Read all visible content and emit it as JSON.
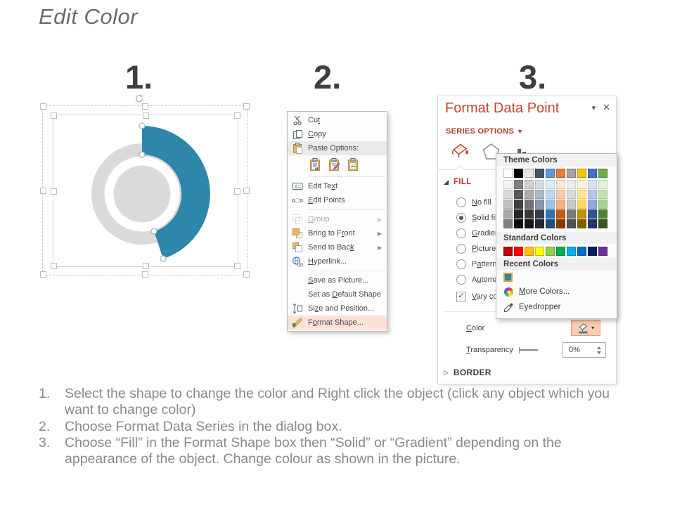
{
  "title": "Edit Color",
  "step_numbers": [
    "1.",
    "2.",
    "3."
  ],
  "shape": {
    "arc_color": "#2E86AB",
    "donut_color": "#DADADA",
    "ring_color": "#FFFFFF"
  },
  "context_menu": {
    "items": [
      {
        "type": "item",
        "icon": "cut-icon",
        "label": "Cu<u>t</u>"
      },
      {
        "type": "item",
        "icon": "copy-icon",
        "label": "<u>C</u>opy"
      },
      {
        "type": "item",
        "icon": "paste-icon",
        "label": "Paste Options:",
        "highlight": true
      },
      {
        "type": "paste_row",
        "icons": [
          "paste-keep-formatting-icon",
          "paste-merge-formatting-icon",
          "paste-picture-icon"
        ]
      },
      {
        "type": "sep"
      },
      {
        "type": "item",
        "icon": "edit-text-icon",
        "label": "Edit Te<u>x</u>t"
      },
      {
        "type": "item",
        "icon": "edit-points-icon",
        "label": "<u>E</u>dit Points"
      },
      {
        "type": "sep"
      },
      {
        "type": "item",
        "icon": "group-icon",
        "label": "<u>G</u>roup",
        "disabled": true,
        "submenu": true
      },
      {
        "type": "item",
        "icon": "bring-to-front-icon",
        "label": "Bring to F<u>r</u>ont",
        "submenu": true
      },
      {
        "type": "item",
        "icon": "send-to-back-icon",
        "label": "Send to Bac<u>k</u>",
        "submenu": true
      },
      {
        "type": "item",
        "icon": "hyperlink-icon",
        "label": "<u>H</u>yperlink..."
      },
      {
        "type": "sep"
      },
      {
        "type": "item",
        "icon": null,
        "label": "<u>S</u>ave as Picture..."
      },
      {
        "type": "item",
        "icon": null,
        "label": "Set as <u>D</u>efault Shape"
      },
      {
        "type": "item",
        "icon": "size-position-icon",
        "label": "Si<u>z</u>e and Position..."
      },
      {
        "type": "item",
        "icon": "format-shape-icon",
        "label": "F<u>o</u>rmat Shape...",
        "highlight2": true
      }
    ]
  },
  "panel": {
    "title": "Format Data Point",
    "collapse_icon": "▾",
    "close_icon": "✕",
    "series_options": "SERIES OPTIONS",
    "series_caret": "▼",
    "tabs": [
      "fill-and-line",
      "effects",
      "series-options"
    ],
    "fill_header": "FILL",
    "fill_options": [
      {
        "label": "<u>N</u>o fill",
        "selected": false
      },
      {
        "label": "<u>S</u>olid fill",
        "selected": true
      },
      {
        "label": "<u>G</u>radient fill",
        "selected": false
      },
      {
        "label": "<u>P</u>icture or texture fill",
        "selected": false
      },
      {
        "label": "P<u>a</u>ttern fill",
        "selected": false
      },
      {
        "label": "A<u>u</u>tomatic",
        "selected": false
      }
    ],
    "vary": {
      "label": "<u>V</u>ary colors by point",
      "checked": true,
      "check_glyph": "✓"
    },
    "color_label": "<u>C</u>olor",
    "color_dropdown_caret": "▾",
    "transparency_label": "<u>T</u>ransparency",
    "transparency_value": "0%",
    "border_header": "BORDER",
    "border_caret": "▷"
  },
  "picker": {
    "theme_header": "Theme Colors",
    "standard_header": "Standard Colors",
    "recent_header": "Recent Colors",
    "more_colors_label": "<u>M</u>ore Colors...",
    "eyedropper_label": "Eyedropper",
    "theme_colors": [
      "#FFFFFF",
      "#000000",
      "#E7E6E6",
      "#44546A",
      "#5B9BD5",
      "#ED7D31",
      "#A5A5A5",
      "#FFC000",
      "#4472C4",
      "#70AD47"
    ],
    "theme_variants": [
      [
        "#F2F2F2",
        "#D9D9D9",
        "#BFBFBF",
        "#A6A6A6",
        "#808080"
      ],
      [
        "#808080",
        "#595959",
        "#404040",
        "#262626",
        "#0D0D0D"
      ],
      [
        "#D0CECE",
        "#AEABAB",
        "#757070",
        "#3A3838",
        "#161616"
      ],
      [
        "#D6DCE4",
        "#ACB9CA",
        "#8496B0",
        "#333F4F",
        "#222A35"
      ],
      [
        "#DEEBF6",
        "#BDD7EE",
        "#9DC3E6",
        "#2E74B5",
        "#1F4E79"
      ],
      [
        "#FBE5D5",
        "#F7CBAC",
        "#F4B183",
        "#C55A11",
        "#833C00"
      ],
      [
        "#EDEDED",
        "#DBDBDB",
        "#C9C9C9",
        "#7B7B7B",
        "#525252"
      ],
      [
        "#FFF2CC",
        "#FFE599",
        "#FFD965",
        "#BF9000",
        "#7F6000"
      ],
      [
        "#DAE3F3",
        "#B4C7E7",
        "#8FAADC",
        "#2F5597",
        "#1F3864"
      ],
      [
        "#E2EFD9",
        "#C5E0B3",
        "#A8D08D",
        "#538135",
        "#375623"
      ]
    ],
    "standard_colors": [
      "#C00000",
      "#FF0000",
      "#FFC000",
      "#FFFF00",
      "#92D050",
      "#00B050",
      "#00B0F0",
      "#0070C0",
      "#002060",
      "#7030A0"
    ],
    "recent_colors": [
      "#2E86AB"
    ]
  },
  "instructions": [
    "Select the shape to change the color and Right click the object (click any object which you want to change color)",
    "Choose Format Data Series in the dialog box.",
    "Choose “Fill” in the Format Shape box then  “Solid” or “Gradient” depending on the appearance of the object. Change colour as shown in the picture."
  ]
}
